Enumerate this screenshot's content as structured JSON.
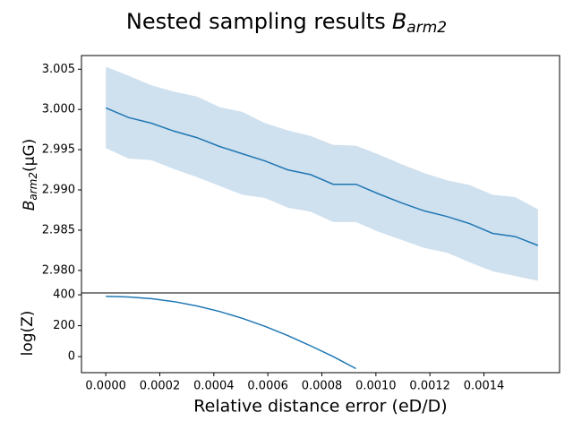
{
  "suptitle": {
    "text": "Nested sampling results",
    "symbol": "B",
    "subscript": "arm2"
  },
  "chart_data": [
    {
      "type": "band_line",
      "ylabel": {
        "symbol": "B",
        "subscript": "arm2",
        "unit": "(μG)"
      },
      "x": [
        0,
        8.42e-05,
        0.0001684,
        0.0002526,
        0.0003368,
        0.0004211,
        0.0005053,
        0.0005895,
        0.0006737,
        0.0007579,
        0.0008421,
        0.0009263,
        0.0010105,
        0.0010947,
        0.0011789,
        0.0012632,
        0.0013474,
        0.0014316,
        0.0015158,
        0.0016
      ],
      "values": [
        3.0002,
        2.999,
        2.9983,
        2.9973,
        2.9965,
        2.9954,
        2.9945,
        2.9936,
        2.9925,
        2.9919,
        2.9907,
        2.9907,
        2.9895,
        2.9884,
        2.9874,
        2.9867,
        2.9858,
        2.9846,
        2.9842,
        2.9831
      ],
      "upper": [
        3.0053,
        3.0042,
        3.003,
        3.0022,
        3.0016,
        3.0003,
        2.9997,
        2.9983,
        2.9974,
        2.9967,
        2.9956,
        2.9955,
        2.9944,
        2.9932,
        2.9921,
        2.9912,
        2.9906,
        2.9894,
        2.9891,
        2.9876
      ],
      "lower": [
        2.9952,
        2.9939,
        2.9937,
        2.9926,
        2.9916,
        2.9905,
        2.9894,
        2.989,
        2.9878,
        2.9873,
        2.986,
        2.986,
        2.9848,
        2.9838,
        2.9828,
        2.9822,
        2.981,
        2.9799,
        2.9793,
        2.9787
      ],
      "color": "#1f77b4",
      "band_color": "#cfe0ee",
      "xlim": [
        -9e-05,
        0.00168
      ],
      "ylim": [
        2.9772,
        3.0067
      ],
      "yticks": [
        3.005,
        {
          "value": 3.0,
          "label": "3.000"
        },
        2.995,
        {
          "value": 2.99,
          "label": "2.990"
        },
        2.985,
        {
          "value": 2.98,
          "label": "2.980"
        }
      ]
    },
    {
      "type": "line",
      "ylabel": "log(Z)",
      "xlabel": "Relative distance error  (eD/D)",
      "x": [
        0,
        8.42e-05,
        0.0001684,
        0.0002526,
        0.0003368,
        0.0004211,
        0.0005053,
        0.0005895,
        0.0006737,
        0.0007579,
        0.0008421,
        0.0009263,
        0.0010105,
        0.0010947,
        0.0011789,
        0.0012632,
        0.0013474,
        0.0014316,
        0.0015158,
        0.0016
      ],
      "values": [
        390,
        386,
        375,
        356,
        328,
        292,
        248,
        196,
        136,
        70,
        0,
        -78,
        null,
        null,
        null,
        null,
        null,
        null,
        null,
        null
      ],
      "color": "#1f77b4",
      "xlim": [
        -9e-05,
        0.00168
      ],
      "ylim": [
        -104,
        412
      ],
      "yticks": [
        400,
        200,
        0
      ],
      "xticks": [
        {
          "value": 0,
          "label": "0.0000"
        },
        {
          "value": 0.0002,
          "label": "0.0002"
        },
        {
          "value": 0.0004,
          "label": "0.0004"
        },
        {
          "value": 0.0006,
          "label": "0.0006"
        },
        {
          "value": 0.0008,
          "label": "0.0008"
        },
        {
          "value": 0.001,
          "label": "0.0010"
        },
        {
          "value": 0.0012,
          "label": "0.0012"
        },
        {
          "value": 0.0014,
          "label": "0.0014"
        }
      ]
    }
  ]
}
